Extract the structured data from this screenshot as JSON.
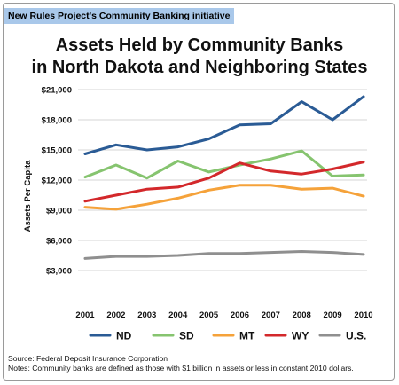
{
  "banner": "New Rules Project's Community Banking initiative",
  "colors": {
    "ND": "#2a5b95",
    "SD": "#86c46f",
    "MT": "#f5a23a",
    "WY": "#d3282b",
    "US": "#8f8f8f",
    "grid": "#d6d6d6",
    "banner_bg": "#a9c8ea"
  },
  "chart_data": {
    "type": "line",
    "title": [
      "Assets Held by Community Banks",
      "in North Dakota and Neighboring States"
    ],
    "ylabel": "Assets Per Capita",
    "xlabel": "",
    "x": [
      "2001",
      "2002",
      "2003",
      "2004",
      "2005",
      "2006",
      "2007",
      "2008",
      "2009",
      "2010"
    ],
    "ylim": [
      0,
      21000
    ],
    "yticks": [
      3000,
      6000,
      9000,
      12000,
      15000,
      18000,
      21000
    ],
    "ytick_labels": [
      "$3,000",
      "$6,000",
      "$9,000",
      "$12,000",
      "$15,000",
      "$18,000",
      "$21,000"
    ],
    "grid": true,
    "legend_position": "bottom",
    "series": [
      {
        "name": "ND",
        "color_key": "ND",
        "values": [
          14600,
          15500,
          15000,
          15300,
          16100,
          17500,
          17600,
          19800,
          18000,
          20300
        ]
      },
      {
        "name": "SD",
        "color_key": "SD",
        "values": [
          12300,
          13500,
          12200,
          13900,
          12800,
          13500,
          14100,
          14900,
          12400,
          12500
        ]
      },
      {
        "name": "MT",
        "color_key": "MT",
        "values": [
          9300,
          9100,
          9600,
          10200,
          11000,
          11500,
          11500,
          11100,
          11200,
          10400
        ]
      },
      {
        "name": "WY",
        "color_key": "WY",
        "values": [
          9900,
          10500,
          11100,
          11300,
          12200,
          13700,
          12900,
          12600,
          13100,
          13800
        ]
      },
      {
        "name": "U.S.",
        "color_key": "US",
        "values": [
          4200,
          4400,
          4400,
          4500,
          4700,
          4700,
          4800,
          4900,
          4800,
          4600
        ]
      }
    ]
  },
  "source": {
    "line1": "Source: Federal Deposit Insurance Corporation",
    "line2": "Notes: Community banks are defined as those with $1 billion in assets or less in constant 2010 dollars."
  }
}
